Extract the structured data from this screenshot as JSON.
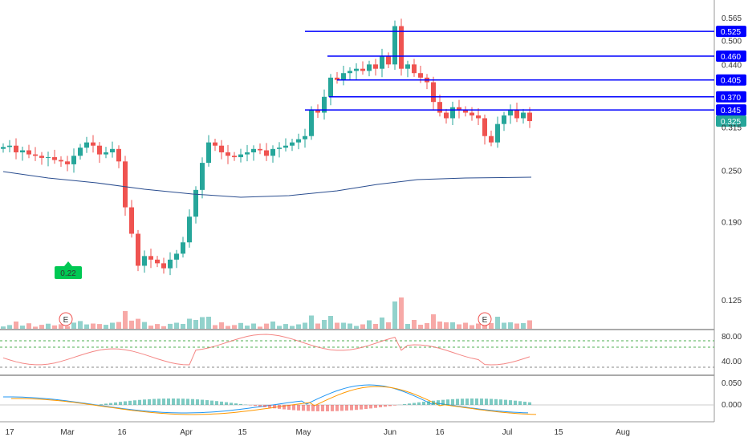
{
  "chart_data": {
    "type": "candlestick",
    "x_labels": [
      "17",
      "Mar",
      "16",
      "Apr",
      "15",
      "May",
      "Jun",
      "16",
      "Jul",
      "15",
      "Aug"
    ],
    "price_axis": {
      "ticks": [
        "0.565",
        "0.500",
        "0.440",
        "0.315",
        "0.250",
        "0.190",
        "0.125"
      ],
      "scale": "log"
    },
    "levels": [
      {
        "value": 0.525,
        "label": "0.525"
      },
      {
        "value": 0.46,
        "label": "0.460"
      },
      {
        "value": 0.405,
        "label": "0.405"
      },
      {
        "value": 0.37,
        "label": "0.370"
      },
      {
        "value": 0.345,
        "label": "0.345"
      }
    ],
    "last_price": {
      "value": 0.325,
      "label": "0.325"
    },
    "marker": {
      "value": 0.22,
      "label": "0.22"
    },
    "earnings_markers": [
      "E",
      "E"
    ],
    "rsi_axis": {
      "ticks": [
        "80.00",
        "40.00"
      ]
    },
    "macd_axis": {
      "ticks": [
        "0.050",
        "0.000"
      ]
    },
    "colors": {
      "up": "#26a69a",
      "down": "#ef5350",
      "level_line": "#0000ff",
      "moving_average": "#2a4d8f",
      "marker": "#00c853",
      "macd": "#2196f3",
      "signal": "#ff9800",
      "rsi": "#ef5350"
    }
  }
}
